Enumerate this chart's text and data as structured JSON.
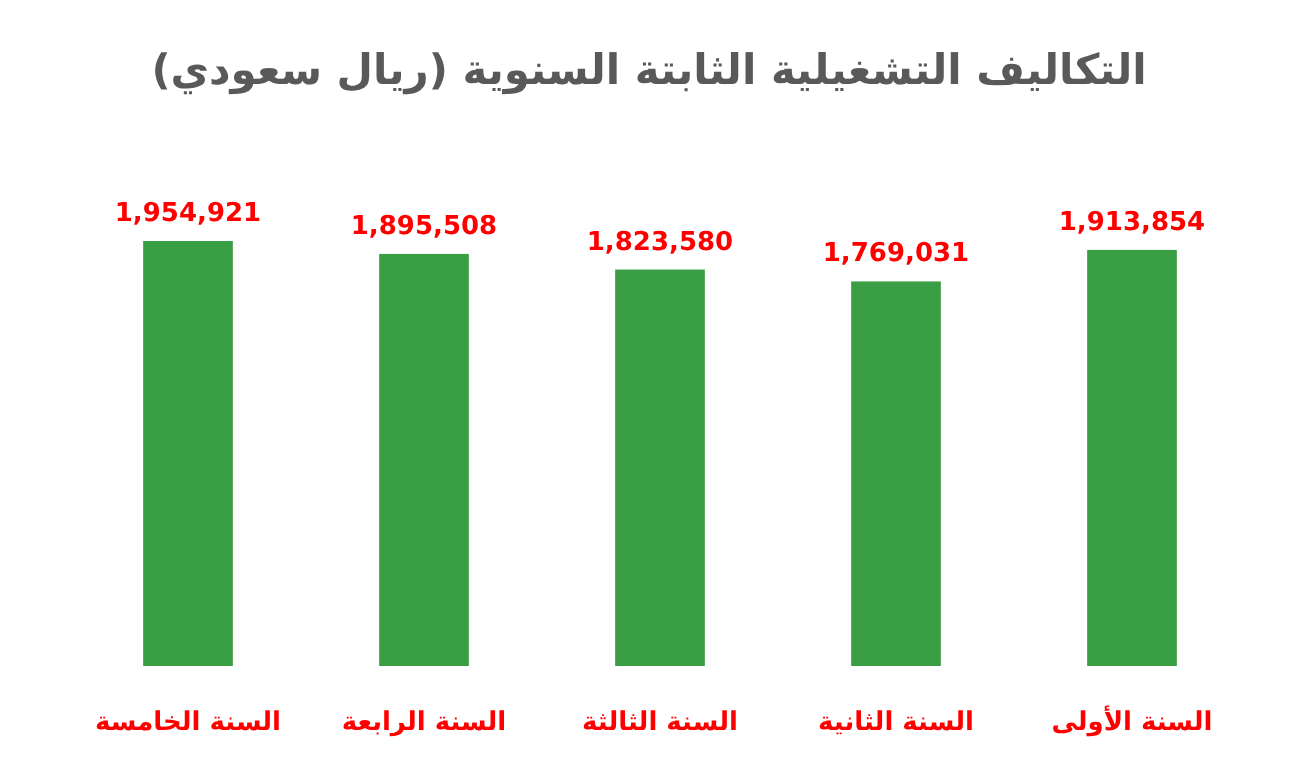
{
  "chart_data": {
    "type": "bar",
    "title": "التكاليف التشغيلية الثابتة السنوية (ريال سعودي)",
    "categories": [
      "السنة الخامسة",
      "السنة الرابعة",
      "السنة الثالثة",
      "السنة الثانية",
      "السنة الأولى"
    ],
    "values": [
      1954921,
      1895508,
      1823580,
      1769031,
      1913854
    ],
    "value_labels": [
      "1,954,921",
      "1,895,508",
      "1,823,580",
      "1,769,031",
      "1,913,854"
    ],
    "color": "#3a9e45"
  }
}
